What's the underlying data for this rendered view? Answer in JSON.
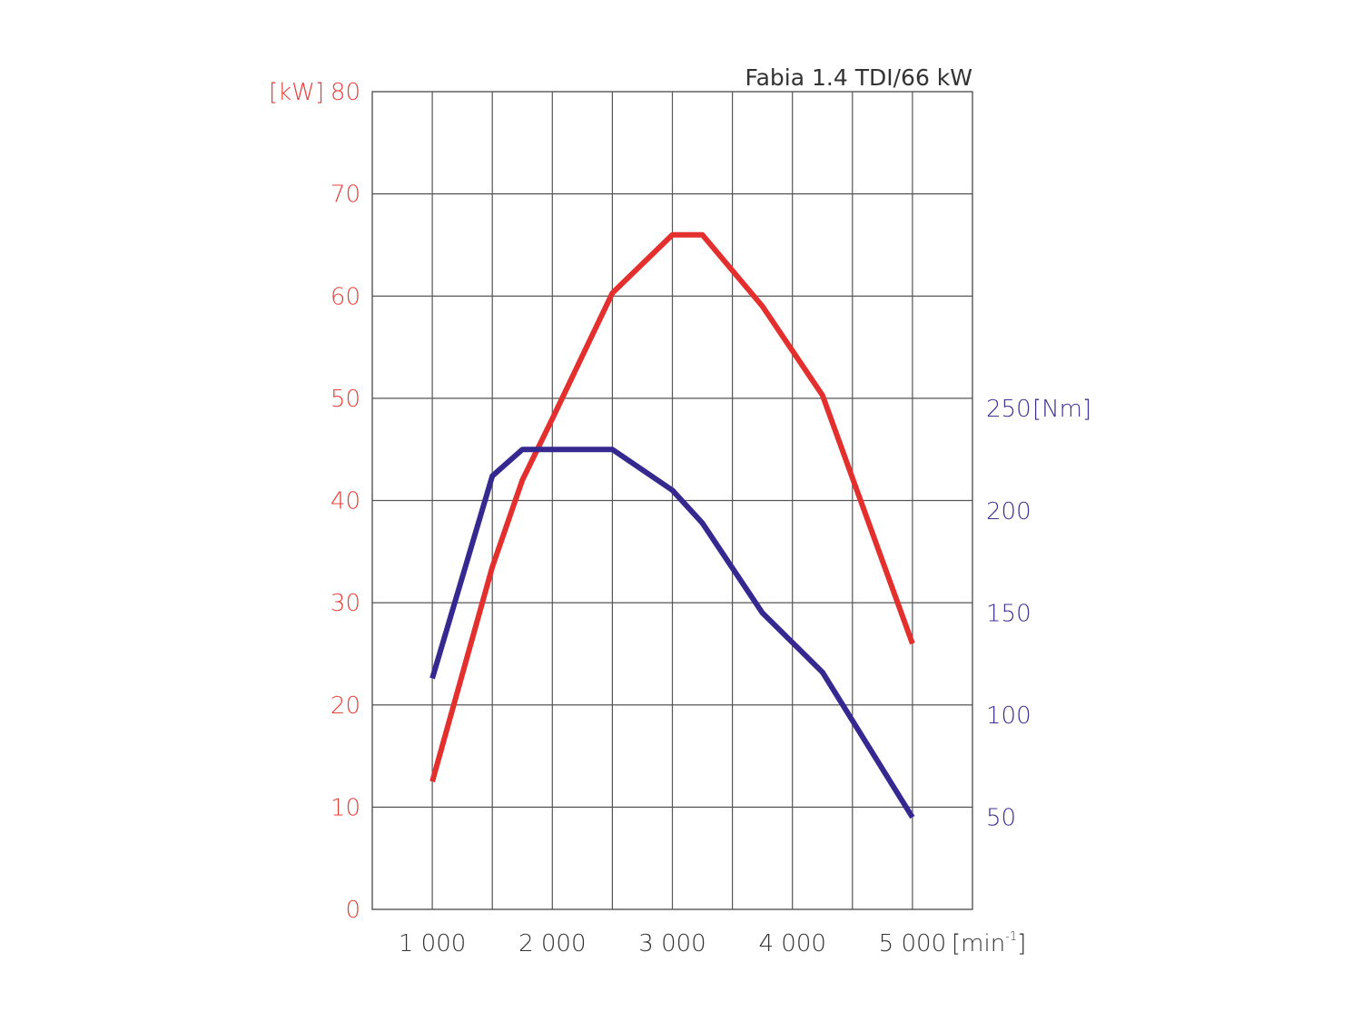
{
  "chart_data": {
    "type": "line",
    "title": "Fabia 1.4 TDI/66 kW",
    "x_axis": {
      "ticks": [
        {
          "value": 1000,
          "label": "1 000"
        },
        {
          "value": 2000,
          "label": "2 000"
        },
        {
          "value": 3000,
          "label": "3 000"
        },
        {
          "value": 4000,
          "label": "4 000"
        },
        {
          "value": 5000,
          "label": "5 000"
        }
      ],
      "unit_label": "[min",
      "unit_superscript": "-1",
      "unit_close": "]",
      "range": [
        500,
        5500
      ],
      "gridlines": [
        1000,
        1500,
        2000,
        2500,
        3000,
        3500,
        4000,
        4500,
        5000
      ]
    },
    "y_left": {
      "unit_label": "[kW]",
      "color": "#e8413c",
      "range": [
        0,
        80
      ],
      "ticks": [
        {
          "value": 0,
          "label": "0"
        },
        {
          "value": 10,
          "label": "10"
        },
        {
          "value": 20,
          "label": "20"
        },
        {
          "value": 30,
          "label": "30"
        },
        {
          "value": 40,
          "label": "40"
        },
        {
          "value": 50,
          "label": "50"
        },
        {
          "value": 60,
          "label": "60"
        },
        {
          "value": 70,
          "label": "70"
        },
        {
          "value": 80,
          "label": "80"
        }
      ]
    },
    "y_right": {
      "unit_label": "[Nm]",
      "color": "#3d3192",
      "range": [
        5,
        405
      ],
      "ticks": [
        {
          "value": 50,
          "label": "50"
        },
        {
          "value": 100,
          "label": "100"
        },
        {
          "value": 150,
          "label": "150"
        },
        {
          "value": 200,
          "label": "200"
        },
        {
          "value": 250,
          "label": "250"
        }
      ]
    },
    "grid": true,
    "series": [
      {
        "axis": "left",
        "color": "#e3302e",
        "x": [
          1000,
          1500,
          1750,
          2000,
          2500,
          3000,
          3250,
          3750,
          4250,
          5000
        ],
        "y": [
          12.5,
          33.5,
          42,
          48,
          60.3,
          66,
          66,
          59,
          50.3,
          26
        ]
      },
      {
        "axis": "right",
        "color": "#35288f",
        "x": [
          1000,
          1500,
          1750,
          2000,
          2500,
          3000,
          3250,
          3750,
          4250,
          5000
        ],
        "y": [
          118,
          217,
          230,
          230,
          230,
          210,
          194,
          150,
          121,
          50
        ]
      }
    ]
  }
}
